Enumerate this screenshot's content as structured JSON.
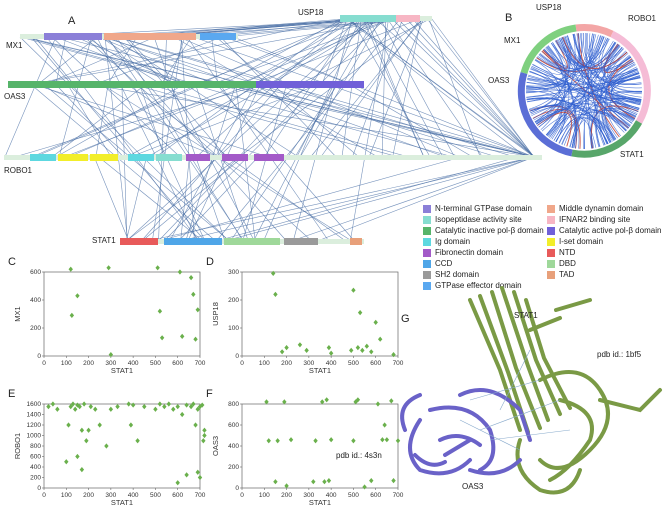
{
  "panel_A": {
    "letter": "A",
    "proteins": {
      "mx1": "MX1",
      "usp18": "USP18",
      "oas3": "OAS3",
      "robo1": "ROBO1",
      "stat1": "STAT1"
    }
  },
  "panel_B": {
    "letter": "B",
    "labels": {
      "usp18": "USP18",
      "robo1": "ROBO1",
      "mx1": "MX1",
      "oas3": "OAS3",
      "stat1": "STAT1"
    }
  },
  "legend": {
    "items": [
      {
        "label": "N-terminal GTPase domain",
        "color": "#8b7fd8"
      },
      {
        "label": "Middle dynamin domain",
        "color": "#f0a78a"
      },
      {
        "label": "Isopeptidase activity site",
        "color": "#86ddd0"
      },
      {
        "label": "IFNAR2 binding site",
        "color": "#f7b6c4"
      },
      {
        "label": "Catalytic inactive pol-β domain",
        "color": "#56b46a"
      },
      {
        "label": "Catalytic active pol-β domain",
        "color": "#7060d8"
      },
      {
        "label": "Ig domain",
        "color": "#5dd8e0"
      },
      {
        "label": "I-set domain",
        "color": "#f2ee2a"
      },
      {
        "label": "Fibronectin domain",
        "color": "#a35ac8"
      },
      {
        "label": "NTD",
        "color": "#e85a5a"
      },
      {
        "label": "CCD",
        "color": "#4fa6e8"
      },
      {
        "label": "DBD",
        "color": "#9fd89a"
      },
      {
        "label": "SH2 domain",
        "color": "#9a9a9a"
      },
      {
        "label": "TAD",
        "color": "#e8a07a"
      },
      {
        "label": "GTPase effector domain",
        "color": "#5aa8f0"
      }
    ]
  },
  "chart_data": [
    {
      "type": "scatter",
      "panel": "C",
      "xlabel": "STAT1",
      "ylabel": "MX1",
      "xlim": [
        0,
        700
      ],
      "ylim": [
        0,
        600
      ],
      "xticks": [
        0,
        100,
        200,
        300,
        400,
        500,
        600,
        700
      ],
      "yticks": [
        0,
        200,
        400,
        600
      ],
      "x": [
        120,
        125,
        150,
        290,
        300,
        510,
        520,
        530,
        610,
        620,
        660,
        670,
        680,
        690
      ],
      "y": [
        620,
        290,
        430,
        630,
        10,
        630,
        320,
        130,
        600,
        140,
        560,
        440,
        120,
        330
      ]
    },
    {
      "type": "scatter",
      "panel": "D",
      "xlabel": "STAT1",
      "ylabel": "USP18",
      "xlim": [
        0,
        700
      ],
      "ylim": [
        0,
        300
      ],
      "xticks": [
        0,
        100,
        200,
        300,
        400,
        500,
        600,
        700
      ],
      "yticks": [
        0,
        100,
        200,
        300
      ],
      "x": [
        140,
        150,
        180,
        200,
        260,
        290,
        390,
        400,
        490,
        500,
        520,
        530,
        540,
        560,
        580,
        600,
        620,
        680
      ],
      "y": [
        295,
        220,
        15,
        30,
        40,
        20,
        30,
        10,
        20,
        235,
        30,
        155,
        20,
        35,
        15,
        120,
        60,
        5
      ]
    },
    {
      "type": "scatter",
      "panel": "E",
      "xlabel": "STAT1",
      "ylabel": "ROBO1",
      "xlim": [
        0,
        700
      ],
      "ylim": [
        0,
        1600
      ],
      "xticks": [
        0,
        100,
        200,
        300,
        400,
        500,
        600,
        700
      ],
      "yticks": [
        0,
        200,
        400,
        600,
        800,
        1000,
        1200,
        1400,
        1600
      ],
      "x": [
        20,
        40,
        60,
        110,
        120,
        130,
        140,
        150,
        160,
        170,
        180,
        190,
        200,
        210,
        230,
        280,
        300,
        330,
        380,
        390,
        400,
        420,
        450,
        500,
        520,
        540,
        560,
        580,
        600,
        620,
        640,
        660,
        670,
        680,
        690,
        700,
        710,
        715,
        720,
        100,
        150,
        170,
        250,
        600,
        640,
        690,
        700,
        720
      ],
      "y": [
        1550,
        1600,
        1500,
        1200,
        1550,
        1600,
        1500,
        1580,
        1550,
        1100,
        1600,
        900,
        1100,
        1550,
        1500,
        800,
        1500,
        1550,
        1600,
        1200,
        1580,
        900,
        1550,
        1500,
        1600,
        1550,
        1600,
        1500,
        1550,
        1400,
        1580,
        1550,
        1600,
        1200,
        1500,
        1550,
        1580,
        900,
        1100,
        500,
        600,
        350,
        1200,
        100,
        250,
        300,
        200,
        1000
      ]
    },
    {
      "type": "scatter",
      "panel": "F",
      "xlabel": "STAT1",
      "ylabel": "OAS3",
      "xlim": [
        0,
        700
      ],
      "ylim": [
        0,
        800
      ],
      "xticks": [
        0,
        100,
        200,
        300,
        400,
        500,
        600,
        700
      ],
      "yticks": [
        0,
        200,
        400,
        600,
        800
      ],
      "x": [
        110,
        120,
        150,
        160,
        190,
        200,
        220,
        320,
        330,
        360,
        370,
        380,
        390,
        400,
        500,
        510,
        520,
        550,
        580,
        610,
        630,
        640,
        650,
        670,
        680,
        700
      ],
      "y": [
        820,
        450,
        60,
        450,
        820,
        20,
        460,
        60,
        450,
        820,
        60,
        840,
        70,
        460,
        450,
        820,
        840,
        10,
        70,
        800,
        460,
        600,
        460,
        830,
        70,
        450
      ]
    }
  ],
  "panel_G": {
    "letter": "G",
    "stat1": "STAT1",
    "pdb1": "pdb id.: 1bf5",
    "pdb2": "pdb id.: 4s3n",
    "oas3": "OAS3"
  },
  "colors": {
    "edge": "#4a6fa5",
    "dot": "#6ab04c",
    "ring_edge": "#2f5fd0",
    "ring_red": "#c0392b"
  }
}
